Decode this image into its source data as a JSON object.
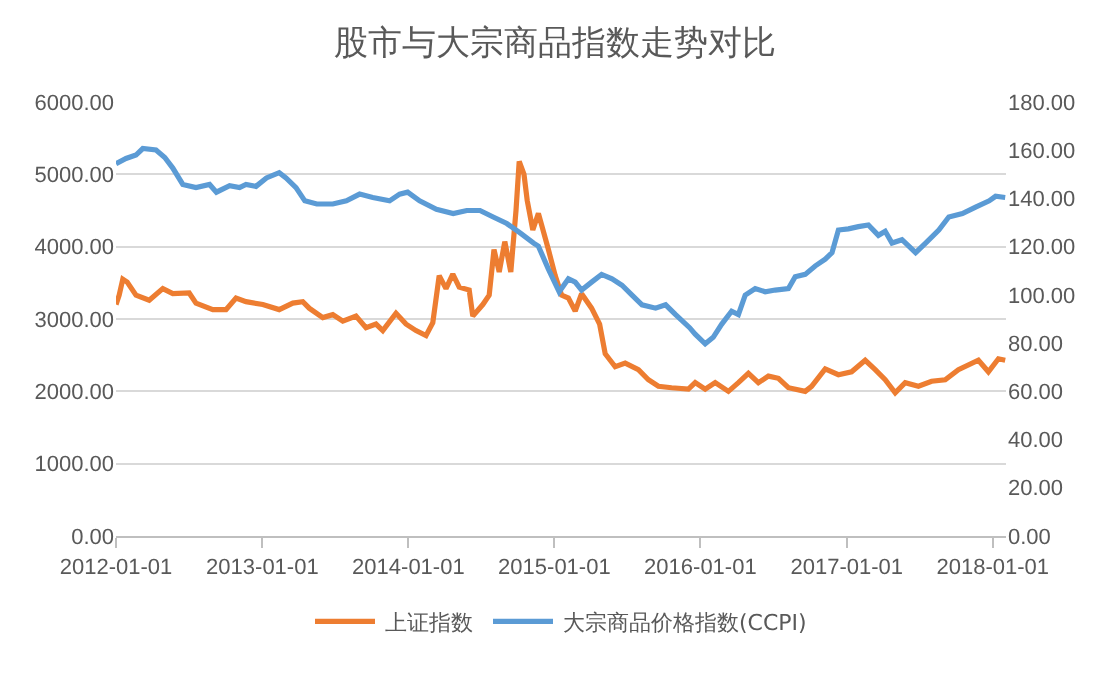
{
  "chart_data": {
    "type": "line",
    "title": "股市与大宗商品指数走势对比",
    "grid": "y",
    "legend": "bottom",
    "marker": "none",
    "line_style": "solid",
    "xlim": [
      "2012-01-01",
      "2018-02-03"
    ],
    "xticks": [
      "2012-01-01",
      "2013-01-01",
      "2014-01-01",
      "2015-01-01",
      "2016-01-01",
      "2017-01-01",
      "2018-01-01"
    ],
    "ylim": [
      0,
      6000
    ],
    "yticks": [
      {
        "value": 0,
        "label": "0.00"
      },
      {
        "value": 1000,
        "label": "1000.00"
      },
      {
        "value": 2000,
        "label": "2000.00"
      },
      {
        "value": 3000,
        "label": "3000.00"
      },
      {
        "value": 4000,
        "label": "4000.00"
      },
      {
        "value": 5000,
        "label": "5000.00"
      },
      {
        "value": 6000,
        "label": "6000.00"
      }
    ],
    "y2lim": [
      0,
      180
    ],
    "y2ticks": [
      {
        "value": 0,
        "label": "0.00"
      },
      {
        "value": 20,
        "label": "20.00"
      },
      {
        "value": 40,
        "label": "40.00"
      },
      {
        "value": 60,
        "label": "60.00"
      },
      {
        "value": 80,
        "label": "80.00"
      },
      {
        "value": 100,
        "label": "100.00"
      },
      {
        "value": 120,
        "label": "120.00"
      },
      {
        "value": 140,
        "label": "140.00"
      },
      {
        "value": 160,
        "label": "160.00"
      },
      {
        "value": 180,
        "label": "180.00"
      }
    ],
    "series": [
      {
        "name": "上证指数",
        "color": "#ed7d31",
        "x": [
          "2012-01-01",
          "2012-01-09",
          "2012-01-18",
          "2012-01-29",
          "2012-02-20",
          "2012-03-24",
          "2012-04-27",
          "2012-05-22",
          "2012-07-02",
          "2012-07-19",
          "2012-08-30",
          "2012-10-02",
          "2012-10-27",
          "2012-11-21",
          "2013-01-02",
          "2013-02-12",
          "2013-03-18",
          "2013-04-12",
          "2013-04-28",
          "2013-06-01",
          "2013-06-26",
          "2013-07-21",
          "2013-08-23",
          "2013-09-17",
          "2013-10-12",
          "2013-10-29",
          "2013-12-01",
          "2013-12-26",
          "2014-01-20",
          "2014-02-14",
          "2014-03-03",
          "2014-03-19",
          "2014-04-05",
          "2014-04-22",
          "2014-05-08",
          "2014-06-02",
          "2014-06-11",
          "2014-07-06",
          "2014-07-22",
          "2014-08-03",
          "2014-08-16",
          "2014-08-30",
          "2014-09-14",
          "2014-09-27",
          "2014-10-05",
          "2014-10-17",
          "2014-10-25",
          "2014-11-08",
          "2014-11-22",
          "2014-12-17",
          "2015-01-03",
          "2015-01-19",
          "2015-02-05",
          "2015-02-22",
          "2015-03-10",
          "2015-04-04",
          "2015-04-24",
          "2015-05-08",
          "2015-06-02",
          "2015-06-27",
          "2015-07-30",
          "2015-08-24",
          "2015-09-18",
          "2015-10-21",
          "2015-12-02",
          "2015-12-19",
          "2016-01-13",
          "2016-02-07",
          "2016-03-11",
          "2016-04-05",
          "2016-04-30",
          "2016-05-25",
          "2016-06-19",
          "2016-07-14",
          "2016-08-08",
          "2016-09-19",
          "2016-10-05",
          "2016-11-08",
          "2016-12-11",
          "2017-01-13",
          "2017-02-16",
          "2017-03-13",
          "2017-04-07",
          "2017-05-02",
          "2017-05-27",
          "2017-06-29",
          "2017-08-01",
          "2017-09-04",
          "2017-10-07",
          "2017-11-26",
          "2017-12-21",
          "2018-01-15",
          "2018-02-01"
        ],
        "values": [
          3200,
          3330,
          3550,
          3510,
          3330,
          3260,
          3420,
          3350,
          3360,
          3220,
          3130,
          3130,
          3290,
          3240,
          3200,
          3130,
          3220,
          3240,
          3150,
          3020,
          3060,
          2970,
          3040,
          2880,
          2930,
          2840,
          3080,
          2930,
          2840,
          2770,
          2950,
          3600,
          3420,
          3620,
          3440,
          3400,
          3040,
          3200,
          3330,
          3960,
          3650,
          4070,
          3650,
          4500,
          5180,
          5000,
          4640,
          4230,
          4460,
          3960,
          3600,
          3330,
          3290,
          3110,
          3350,
          3150,
          2930,
          2520,
          2340,
          2390,
          2300,
          2160,
          2070,
          2050,
          2030,
          2120,
          2030,
          2120,
          2000,
          2120,
          2250,
          2120,
          2210,
          2180,
          2050,
          2000,
          2070,
          2310,
          2230,
          2270,
          2430,
          2300,
          2160,
          1980,
          2120,
          2070,
          2140,
          2160,
          2300,
          2430,
          2270,
          2450,
          2430
        ]
      },
      {
        "name": "大宗商品价格指数(CCPI)",
        "color": "#5b9bd5",
        "axis": "y2",
        "x": [
          "2012-01-01",
          "2012-01-26",
          "2012-02-20",
          "2012-03-08",
          "2012-04-10",
          "2012-05-02",
          "2012-05-22",
          "2012-06-16",
          "2012-07-19",
          "2012-08-22",
          "2012-09-08",
          "2012-10-11",
          "2012-11-05",
          "2012-11-21",
          "2012-12-16",
          "2013-01-11",
          "2013-02-12",
          "2013-03-01",
          "2013-03-26",
          "2013-04-17",
          "2013-05-17",
          "2013-06-26",
          "2013-07-30",
          "2013-09-01",
          "2013-10-04",
          "2013-11-15",
          "2013-12-10",
          "2013-12-30",
          "2014-01-29",
          "2014-03-12",
          "2014-04-23",
          "2014-05-27",
          "2014-06-29",
          "2014-08-01",
          "2014-09-04",
          "2014-10-08",
          "2014-11-10",
          "2014-11-22",
          "2014-12-17",
          "2015-01-13",
          "2015-02-05",
          "2015-02-22",
          "2015-03-10",
          "2015-04-04",
          "2015-04-29",
          "2015-05-25",
          "2015-06-19",
          "2015-07-14",
          "2015-08-08",
          "2015-09-11",
          "2015-10-06",
          "2015-10-31",
          "2015-12-05",
          "2015-12-19",
          "2016-01-13",
          "2016-02-02",
          "2016-02-23",
          "2016-03-19",
          "2016-04-05",
          "2016-04-22",
          "2016-05-17",
          "2016-06-11",
          "2016-07-06",
          "2016-08-08",
          "2016-08-25",
          "2016-09-19",
          "2016-10-14",
          "2016-11-08",
          "2016-11-25",
          "2016-12-11",
          "2017-01-05",
          "2017-01-30",
          "2017-02-24",
          "2017-03-21",
          "2017-04-07",
          "2017-04-24",
          "2017-05-19",
          "2017-06-05",
          "2017-06-22",
          "2017-07-17",
          "2017-08-19",
          "2017-09-13",
          "2017-10-17",
          "2017-11-19",
          "2017-12-23",
          "2018-01-08",
          "2018-02-01"
        ],
        "values": [
          154.4,
          156.6,
          158,
          160.7,
          160.1,
          157,
          152.6,
          145.8,
          144.5,
          145.8,
          142.6,
          145.3,
          144.5,
          145.8,
          145,
          148.5,
          150.7,
          148.5,
          144.5,
          139,
          137.7,
          137.7,
          139,
          141.8,
          140.4,
          139,
          141.8,
          142.6,
          139,
          135.5,
          133.7,
          135,
          135,
          132.3,
          129.6,
          125.6,
          121.5,
          120.2,
          110.7,
          101.3,
          106.7,
          105.3,
          102,
          105.3,
          108.5,
          106.7,
          104,
          99.9,
          95.9,
          94.5,
          95.9,
          91.8,
          86.4,
          83.7,
          79.7,
          82.4,
          87.8,
          93.2,
          91.8,
          99.9,
          102.6,
          101.3,
          102,
          102.6,
          107.5,
          108.5,
          112,
          114.8,
          117.5,
          126.9,
          127.4,
          128.3,
          129,
          124.7,
          126.4,
          121.5,
          122.9,
          120.2,
          117.5,
          121.5,
          126.9,
          132.3,
          133.7,
          136.4,
          139,
          140.9,
          140.4
        ]
      }
    ]
  }
}
